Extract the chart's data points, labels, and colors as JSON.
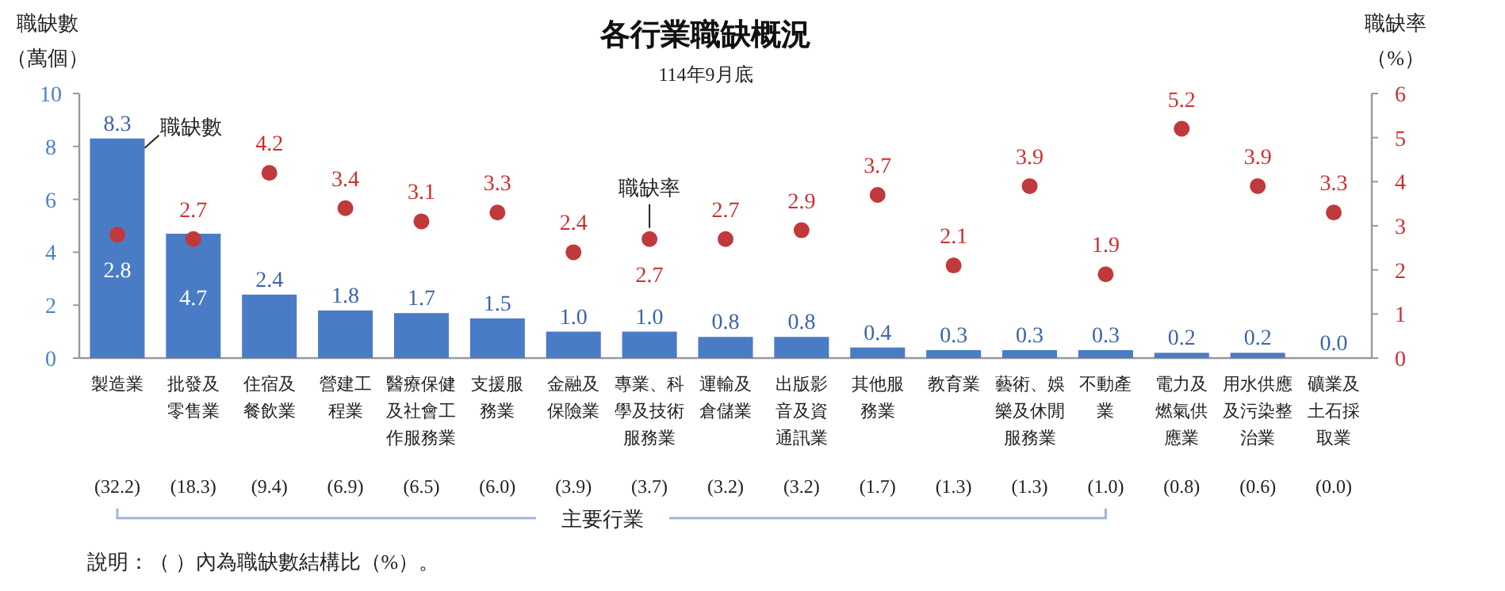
{
  "chart_data": {
    "type": "bar",
    "title": "各行業職缺概況",
    "subtitle": "114年9月底",
    "ylabel": "職缺數（萬個）",
    "y2label": "職缺率（%）",
    "categories": [
      "製造業",
      "批發及零售業",
      "住宿及餐飲業",
      "營建工程業",
      "醫療保健及社會工作服務業",
      "支援服務業",
      "金融及保險業",
      "專業、科學及技術服務業",
      "運輸及倉儲業",
      "出版影音及資通訊業",
      "其他服務業",
      "教育業",
      "藝術、娛樂及休閒服務業",
      "不動產業",
      "電力及燃氣供應業",
      "用水供應及污染整治業",
      "礦業及土石採取業"
    ],
    "series": [
      {
        "name": "職缺數",
        "type": "bar",
        "color": "#4a7cc6",
        "values": [
          8.3,
          4.7,
          2.4,
          1.8,
          1.7,
          1.5,
          1.0,
          1.0,
          0.8,
          0.8,
          0.4,
          0.3,
          0.3,
          0.3,
          0.2,
          0.2,
          0.0
        ],
        "value_labels": [
          "8.3",
          "4.7",
          "2.4",
          "1.8",
          "1.7",
          "1.5",
          "1.0",
          "1.0",
          "0.8",
          "0.8",
          "0.4",
          "0.3",
          "0.3",
          "0.3",
          "0.2",
          "0.2",
          "0.0"
        ]
      },
      {
        "name": "職缺率",
        "type": "scatter",
        "axis": "y2",
        "color": "#c0393b",
        "marker": "circle",
        "values": [
          2.8,
          2.7,
          4.2,
          3.4,
          3.1,
          3.3,
          2.4,
          2.7,
          2.7,
          2.9,
          3.7,
          2.1,
          3.9,
          1.9,
          5.2,
          3.9,
          3.3
        ]
      }
    ],
    "ylim": [
      0,
      10
    ],
    "yticks": [
      0,
      2,
      4,
      6,
      8,
      10
    ],
    "y2lim": [
      0,
      6
    ],
    "y2ticks": [
      0,
      1,
      2,
      3,
      4,
      5,
      6
    ],
    "data_labels": true,
    "grid": false,
    "legend": false,
    "annotations": [
      "(32.2)",
      "(18.3)",
      "(9.4)",
      "(6.9)",
      "(6.5)",
      "(6.0)",
      "(3.9)",
      "(3.7)",
      "(3.2)",
      "(3.2)",
      "(1.7)",
      "(1.3)",
      "(1.3)",
      "(1.0)",
      "(0.8)",
      "(0.6)",
      "(0.0)",
      "主要行業",
      "說明：（ ）內為職缺數結構比（%）。"
    ]
  }
}
